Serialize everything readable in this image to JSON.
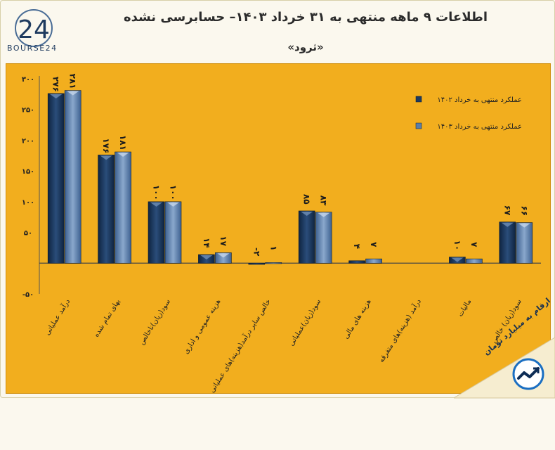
{
  "header": {
    "title": "اطلاعات ۹ ماهه منتهی به ۳۱ خرداد ۱۴۰۳– حسابرسی نشده",
    "subtitle": "«ثرود»",
    "logo_text": "BOURSE24",
    "logo_number": "24"
  },
  "badge": {
    "text": "ارقام به میلیارد تومان"
  },
  "colors": {
    "panel": "#f2ae1e",
    "series1": "#1e3a5f",
    "series2": "#5b7ea8",
    "text": "#222222"
  },
  "chart_data": {
    "type": "bar",
    "title": "اطلاعات ۹ ماهه منتهی به ۳۱ خرداد ۱۴۰۳– حسابرسی نشده",
    "ylim": [
      -50,
      300
    ],
    "yticks": [
      -50,
      0,
      50,
      100,
      150,
      200,
      250,
      300
    ],
    "ytick_labels": [
      "-۵۰",
      "",
      "۵۰",
      "۱۰۰",
      "۱۵۰",
      "۲۰۰",
      "۲۵۰",
      "۳۰۰"
    ],
    "categories": [
      "درآمد عملیاتی",
      "بهای تمام شده",
      "سود(زیان)ناخالص",
      "هزینه عمومی و اداری",
      "خالص سایر درآمد(هزینه)های عملیاتی",
      "سود(زیان)عملیاتی",
      "هزینه های مالی",
      "درآمد (هزینه)های متفرقه",
      "مالیات",
      "سود(زیان) خالص"
    ],
    "series": [
      {
        "name": "عملکرد منتهی به خرداد ۱۴۰۲",
        "values": [
          276,
          176,
          100,
          14,
          -2,
          85,
          4,
          0,
          10,
          67
        ],
        "labels": [
          "۲۷۶",
          "۱۷۶",
          "۱۰۰",
          "۱۴",
          "-۲",
          "۸۵",
          "۴",
          "",
          "۱۰",
          "۶۷"
        ]
      },
      {
        "name": "عملکرد منتهی به خرداد ۱۴۰۳",
        "values": [
          281,
          181,
          100,
          17,
          1,
          83,
          7,
          0,
          7,
          66
        ],
        "labels": [
          "۲۸۱",
          "۱۸۱",
          "۱۰۰",
          "۱۷",
          "۱",
          "۸۳",
          "۷",
          "",
          "۷",
          "۶۶"
        ]
      }
    ],
    "legend_position": "top-right"
  }
}
